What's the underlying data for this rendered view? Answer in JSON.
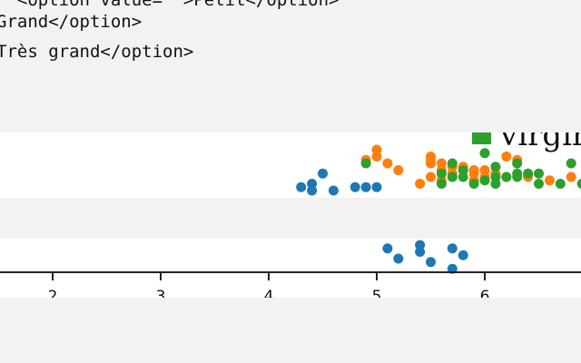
{
  "code": {
    "lines": [
      "  <option value=\"\">Petit</option>",
      "Grand</option>",
      "Très grand</option>"
    ]
  },
  "chart_data": {
    "type": "scatter",
    "title": "",
    "xlabel": "",
    "ylabel": "",
    "xlim": [
      1.2,
      6.9
    ],
    "x_ticks": [
      "2",
      "3",
      "4",
      "5",
      "6"
    ],
    "legend": {
      "placement": "top-right",
      "entries": [
        "virginica"
      ]
    },
    "series": [
      {
        "color": "#1f77b4",
        "points": [
          [
            4.5,
            4.9
          ],
          [
            4.4,
            4.6
          ],
          [
            4.3,
            4.5
          ],
          [
            4.4,
            4.4
          ],
          [
            4.8,
            4.5
          ],
          [
            4.9,
            4.5
          ],
          [
            5.0,
            4.5
          ],
          [
            4.6,
            4.4
          ],
          [
            5.1,
            2.7
          ],
          [
            5.2,
            2.4
          ],
          [
            5.4,
            2.6
          ],
          [
            5.5,
            2.3
          ],
          [
            5.7,
            2.1
          ],
          [
            5.8,
            2.5
          ],
          [
            5.7,
            2.7
          ],
          [
            5.4,
            2.8
          ]
        ]
      },
      {
        "color": "#ff7f0e",
        "points": [
          [
            5.0,
            5.6
          ],
          [
            5.0,
            5.4
          ],
          [
            4.9,
            5.3
          ],
          [
            5.1,
            5.2
          ],
          [
            5.2,
            5.0
          ],
          [
            5.5,
            5.4
          ],
          [
            5.5,
            5.3
          ],
          [
            5.5,
            5.2
          ],
          [
            5.6,
            5.2
          ],
          [
            5.7,
            5.1
          ],
          [
            5.8,
            5.1
          ],
          [
            5.6,
            5.0
          ],
          [
            5.7,
            4.9
          ],
          [
            5.9,
            5.0
          ],
          [
            6.0,
            5.0
          ],
          [
            6.1,
            4.9
          ],
          [
            6.0,
            4.8
          ],
          [
            5.5,
            4.8
          ],
          [
            5.4,
            4.6
          ],
          [
            5.7,
            4.8
          ],
          [
            6.2,
            5.4
          ],
          [
            6.3,
            5.3
          ],
          [
            6.2,
            4.8
          ],
          [
            6.4,
            4.8
          ],
          [
            6.6,
            4.7
          ],
          [
            6.8,
            4.8
          ],
          [
            5.9,
            4.9
          ],
          [
            6.0,
            4.7
          ],
          [
            5.6,
            4.7
          ],
          [
            5.9,
            4.7
          ]
        ]
      },
      {
        "color": "#2ca02c",
        "points": [
          [
            6.0,
            5.5
          ],
          [
            4.9,
            5.2
          ],
          [
            5.7,
            5.2
          ],
          [
            6.1,
            5.1
          ],
          [
            6.3,
            5.2
          ],
          [
            6.8,
            5.2
          ],
          [
            5.6,
            4.9
          ],
          [
            5.8,
            5.0
          ],
          [
            5.8,
            4.8
          ],
          [
            6.3,
            4.9
          ],
          [
            6.4,
            4.9
          ],
          [
            6.5,
            4.9
          ],
          [
            6.0,
            4.7
          ],
          [
            6.1,
            4.8
          ],
          [
            6.2,
            4.8
          ],
          [
            6.3,
            4.8
          ],
          [
            5.9,
            4.6
          ],
          [
            6.1,
            4.6
          ],
          [
            6.5,
            4.6
          ],
          [
            6.7,
            4.6
          ],
          [
            6.9,
            4.6
          ],
          [
            5.6,
            4.6
          ],
          [
            5.7,
            4.8
          ]
        ]
      }
    ]
  }
}
